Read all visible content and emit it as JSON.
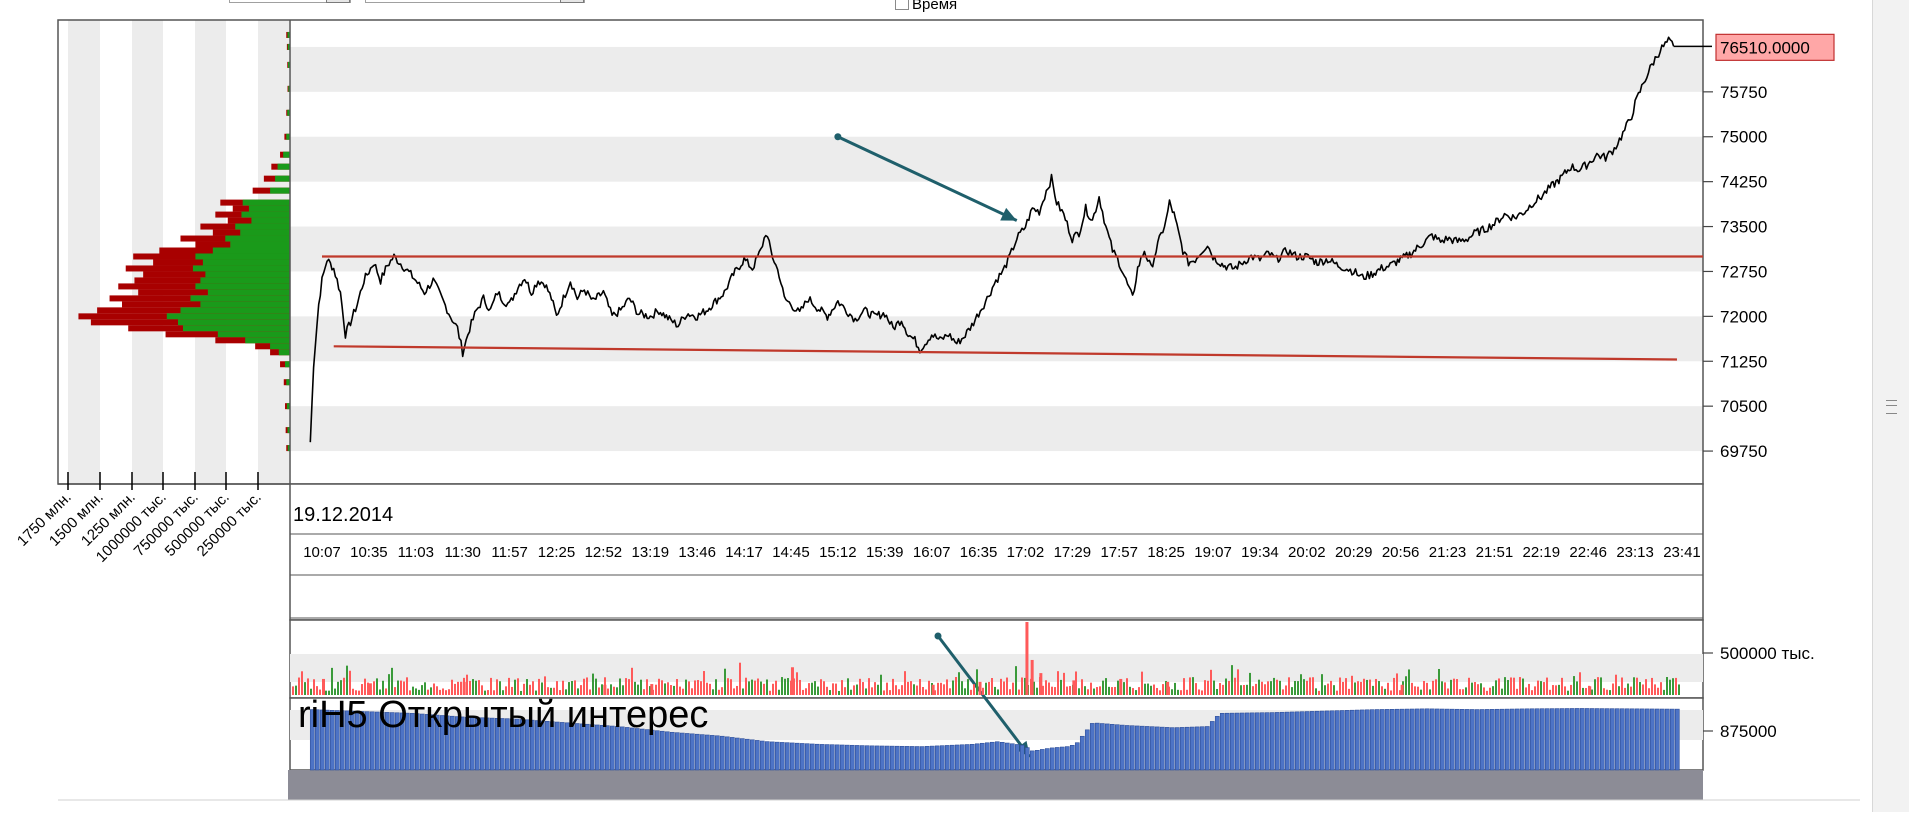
{
  "header": {
    "time_checkbox_label": "Время"
  },
  "chart_data": [
    {
      "type": "line",
      "title": "",
      "xlabel": "",
      "ylabel": "",
      "date": "19.12.2014",
      "x_ticks": [
        "10:07",
        "10:35",
        "11:03",
        "11:30",
        "11:57",
        "12:25",
        "12:52",
        "13:19",
        "13:46",
        "14:17",
        "14:45",
        "15:12",
        "15:39",
        "16:07",
        "16:35",
        "17:02",
        "17:29",
        "17:57",
        "18:25",
        "19:07",
        "19:34",
        "20:02",
        "20:29",
        "20:56",
        "21:23",
        "21:51",
        "22:19",
        "22:46",
        "23:13",
        "23:41"
      ],
      "y_ticks": [
        "75750",
        "75000",
        "74250",
        "73500",
        "72750",
        "72000",
        "71250",
        "70500",
        "69750"
      ],
      "ylim": [
        69200,
        76950
      ],
      "grid": "alternating horizontal bands",
      "last_price": "76510.0000",
      "price_path": [
        [
          "10:00",
          69900
        ],
        [
          "10:02",
          71200
        ],
        [
          "10:05",
          72200
        ],
        [
          "10:07",
          72600
        ],
        [
          "10:10",
          72950
        ],
        [
          "10:14",
          72800
        ],
        [
          "10:18",
          72400
        ],
        [
          "10:21",
          71700
        ],
        [
          "10:24",
          71900
        ],
        [
          "10:28",
          72200
        ],
        [
          "10:32",
          72600
        ],
        [
          "10:35",
          72750
        ],
        [
          "10:38",
          72900
        ],
        [
          "10:42",
          72600
        ],
        [
          "10:46",
          72850
        ],
        [
          "10:50",
          73000
        ],
        [
          "10:55",
          72850
        ],
        [
          "11:00",
          72700
        ],
        [
          "11:03",
          72600
        ],
        [
          "11:08",
          72400
        ],
        [
          "11:13",
          72600
        ],
        [
          "11:18",
          72300
        ],
        [
          "11:23",
          72000
        ],
        [
          "11:27",
          71800
        ],
        [
          "11:30",
          71400
        ],
        [
          "11:34",
          71800
        ],
        [
          "11:38",
          72100
        ],
        [
          "11:42",
          72300
        ],
        [
          "11:46",
          72100
        ],
        [
          "11:50",
          72400
        ],
        [
          "11:54",
          72250
        ],
        [
          "11:57",
          72200
        ],
        [
          "12:02",
          72500
        ],
        [
          "12:06",
          72650
        ],
        [
          "12:10",
          72400
        ],
        [
          "12:14",
          72600
        ],
        [
          "12:18",
          72550
        ],
        [
          "12:22",
          72300
        ],
        [
          "12:25",
          72000
        ],
        [
          "12:29",
          72300
        ],
        [
          "12:33",
          72600
        ],
        [
          "12:37",
          72300
        ],
        [
          "12:41",
          72450
        ],
        [
          "12:46",
          72250
        ],
        [
          "12:52",
          72400
        ],
        [
          "12:57",
          72000
        ],
        [
          "13:02",
          72100
        ],
        [
          "13:07",
          72300
        ],
        [
          "13:12",
          72050
        ],
        [
          "13:19",
          72000
        ],
        [
          "13:24",
          72100
        ],
        [
          "13:30",
          71950
        ],
        [
          "13:35",
          71850
        ],
        [
          "13:40",
          72050
        ],
        [
          "13:46",
          72000
        ],
        [
          "13:52",
          72100
        ],
        [
          "13:58",
          72250
        ],
        [
          "14:04",
          72400
        ],
        [
          "14:10",
          72700
        ],
        [
          "14:17",
          72950
        ],
        [
          "14:22",
          72800
        ],
        [
          "14:27",
          73100
        ],
        [
          "14:30",
          73400
        ],
        [
          "14:34",
          73000
        ],
        [
          "14:38",
          72700
        ],
        [
          "14:41",
          72300
        ],
        [
          "14:45",
          72200
        ],
        [
          "14:50",
          72050
        ],
        [
          "14:55",
          72300
        ],
        [
          "15:00",
          72150
        ],
        [
          "15:06",
          72000
        ],
        [
          "15:12",
          72250
        ],
        [
          "15:17",
          72100
        ],
        [
          "15:22",
          71950
        ],
        [
          "15:27",
          72100
        ],
        [
          "15:33",
          72000
        ],
        [
          "15:39",
          72050
        ],
        [
          "15:44",
          71800
        ],
        [
          "15:49",
          71950
        ],
        [
          "15:53",
          71700
        ],
        [
          "15:57",
          71600
        ],
        [
          "16:00",
          71450
        ],
        [
          "16:03",
          71550
        ],
        [
          "16:07",
          71700
        ],
        [
          "16:12",
          71600
        ],
        [
          "16:17",
          71700
        ],
        [
          "16:22",
          71550
        ],
        [
          "16:26",
          71650
        ],
        [
          "16:31",
          71850
        ],
        [
          "16:35",
          72050
        ],
        [
          "16:40",
          72300
        ],
        [
          "16:45",
          72600
        ],
        [
          "16:49",
          72750
        ],
        [
          "16:53",
          73000
        ],
        [
          "16:57",
          73300
        ],
        [
          "17:02",
          73500
        ],
        [
          "17:06",
          73800
        ],
        [
          "17:10",
          73750
        ],
        [
          "17:14",
          74100
        ],
        [
          "17:17",
          74300
        ],
        [
          "17:20",
          73900
        ],
        [
          "17:24",
          73700
        ],
        [
          "17:29",
          73300
        ],
        [
          "17:33",
          73400
        ],
        [
          "17:37",
          73800
        ],
        [
          "17:41",
          73600
        ],
        [
          "17:45",
          74000
        ],
        [
          "17:49",
          73500
        ],
        [
          "17:53",
          73100
        ],
        [
          "17:57",
          72900
        ],
        [
          "18:01",
          72600
        ],
        [
          "18:05",
          72300
        ],
        [
          "18:08",
          72800
        ],
        [
          "18:12",
          73100
        ],
        [
          "18:16",
          72800
        ],
        [
          "18:20",
          73200
        ],
        [
          "18:25",
          73600
        ],
        [
          "18:28",
          73900
        ],
        [
          "18:32",
          73700
        ],
        [
          "18:36",
          73400
        ],
        [
          "18:40",
          73100
        ],
        [
          "18:45",
          72900
        ],
        [
          "18:51",
          72950
        ],
        [
          "18:57",
          73100
        ],
        [
          "19:02",
          73200
        ],
        [
          "19:07",
          73000
        ],
        [
          "19:13",
          72850
        ],
        [
          "19:19",
          72800
        ],
        [
          "19:24",
          72900
        ],
        [
          "19:29",
          73000
        ],
        [
          "19:34",
          72950
        ],
        [
          "19:39",
          73050
        ],
        [
          "19:44",
          72950
        ],
        [
          "19:50",
          73100
        ],
        [
          "19:56",
          73000
        ],
        [
          "20:02",
          73000
        ],
        [
          "20:08",
          72900
        ],
        [
          "20:14",
          72950
        ],
        [
          "20:20",
          72850
        ],
        [
          "20:25",
          72800
        ],
        [
          "20:29",
          72750
        ],
        [
          "20:34",
          72650
        ],
        [
          "20:39",
          72700
        ],
        [
          "20:45",
          72800
        ],
        [
          "20:50",
          72850
        ],
        [
          "20:56",
          72950
        ],
        [
          "21:02",
          73050
        ],
        [
          "21:08",
          73200
        ],
        [
          "21:14",
          73350
        ],
        [
          "21:19",
          73250
        ],
        [
          "21:23",
          73300
        ],
        [
          "21:29",
          73250
        ],
        [
          "21:35",
          73300
        ],
        [
          "21:40",
          73400
        ],
        [
          "21:45",
          73450
        ],
        [
          "21:51",
          73550
        ],
        [
          "21:57",
          73700
        ],
        [
          "22:03",
          73650
        ],
        [
          "22:09",
          73750
        ],
        [
          "22:14",
          73900
        ],
        [
          "22:19",
          74000
        ],
        [
          "22:24",
          74150
        ],
        [
          "22:30",
          74300
        ],
        [
          "22:36",
          74500
        ],
        [
          "22:41",
          74450
        ],
        [
          "22:46",
          74550
        ],
        [
          "22:51",
          74700
        ],
        [
          "22:56",
          74650
        ],
        [
          "23:01",
          74800
        ],
        [
          "23:06",
          75050
        ],
        [
          "23:11",
          75350
        ],
        [
          "23:13",
          75550
        ],
        [
          "23:18",
          75900
        ],
        [
          "23:23",
          76200
        ],
        [
          "23:28",
          76450
        ],
        [
          "23:33",
          76600
        ],
        [
          "23:36",
          76510
        ]
      ],
      "levels": [
        {
          "from": [
            "10:07",
            73000
          ],
          "to": [
            "23:59",
            73000
          ],
          "color": "#c0392b"
        },
        {
          "from": [
            "10:14",
            71500
          ],
          "to": [
            "23:38",
            71280
          ],
          "color": "#c0392b"
        }
      ],
      "annotation_arrow": {
        "from": [
          "15:12",
          75000
        ],
        "to": [
          "16:57",
          73600
        ],
        "color": "#1f5f6b"
      }
    },
    {
      "type": "bar",
      "title": "",
      "orientation": "horizontal",
      "description_of_ticks": "volume profile",
      "x_ticks": [
        "1750 млн.",
        "1500 млн.",
        "1250 млн.",
        "1000000 тыс.",
        "750000 тыс.",
        "500000 тыс.",
        "250000 тыс."
      ],
      "xlim": [
        0,
        1800
      ],
      "colors": {
        "total": "#a80000",
        "part": "#1a9a1a"
      },
      "profile": [
        [
          76700,
          30,
          20
        ],
        [
          76500,
          25,
          18
        ],
        [
          76200,
          22,
          16
        ],
        [
          75800,
          20,
          14
        ],
        [
          75400,
          30,
          22
        ],
        [
          75000,
          45,
          30
        ],
        [
          74700,
          80,
          55
        ],
        [
          74500,
          150,
          100
        ],
        [
          74300,
          210,
          120
        ],
        [
          74100,
          300,
          160
        ],
        [
          73900,
          560,
          380
        ],
        [
          73800,
          460,
          330
        ],
        [
          73700,
          600,
          390
        ],
        [
          73600,
          500,
          310
        ],
        [
          73500,
          720,
          440
        ],
        [
          73400,
          620,
          400
        ],
        [
          73300,
          880,
          520
        ],
        [
          73200,
          760,
          480
        ],
        [
          73100,
          1050,
          620
        ],
        [
          73000,
          1260,
          760
        ],
        [
          72900,
          1100,
          700
        ],
        [
          72800,
          1320,
          780
        ],
        [
          72700,
          1180,
          680
        ],
        [
          72600,
          1250,
          720
        ],
        [
          72500,
          1380,
          760
        ],
        [
          72400,
          1220,
          660
        ],
        [
          72300,
          1450,
          800
        ],
        [
          72200,
          1350,
          720
        ],
        [
          72100,
          1550,
          880
        ],
        [
          72000,
          1700,
          990
        ],
        [
          71900,
          1600,
          900
        ],
        [
          71800,
          1300,
          860
        ],
        [
          71700,
          1000,
          580
        ],
        [
          71600,
          600,
          360
        ],
        [
          71500,
          280,
          160
        ],
        [
          71400,
          160,
          90
        ],
        [
          71200,
          80,
          40
        ],
        [
          70900,
          50,
          30
        ],
        [
          70500,
          40,
          25
        ],
        [
          70100,
          35,
          20
        ],
        [
          69800,
          30,
          18
        ]
      ]
    },
    {
      "type": "bar",
      "title": "",
      "y_ticks": [
        "500000 тыс."
      ],
      "colors": [
        "#ff5a5a",
        "#3a9a3a"
      ],
      "spikes": [
        [
          "10:07",
          220000
        ],
        [
          "10:35",
          160000
        ],
        [
          "11:30",
          180000
        ],
        [
          "12:52",
          140000
        ],
        [
          "13:19",
          150000
        ],
        [
          "14:45",
          380000
        ],
        [
          "16:07",
          140000
        ],
        [
          "16:35",
          180000
        ],
        [
          "17:02",
          1000000
        ],
        [
          "17:05",
          480000
        ],
        [
          "17:10",
          300000
        ],
        [
          "17:29",
          200000
        ],
        [
          "17:57",
          220000
        ],
        [
          "18:25",
          180000
        ],
        [
          "20:56",
          140000
        ],
        [
          "22:46",
          120000
        ]
      ]
    },
    {
      "type": "bar",
      "title": "riH5 Открытый интерес",
      "y_ticks": [
        "875000"
      ],
      "colors": {
        "bar": "#4d73c6",
        "edge": "#2f4f99"
      },
      "levels": [
        [
          "10:00",
          940000
        ],
        [
          "10:30",
          935000
        ],
        [
          "11:00",
          930000
        ],
        [
          "11:30",
          920000
        ],
        [
          "12:00",
          915000
        ],
        [
          "12:30",
          905000
        ],
        [
          "13:00",
          895000
        ],
        [
          "13:30",
          880000
        ],
        [
          "14:00",
          870000
        ],
        [
          "14:30",
          855000
        ],
        [
          "15:00",
          848000
        ],
        [
          "15:30",
          844000
        ],
        [
          "16:00",
          842000
        ],
        [
          "16:30",
          848000
        ],
        [
          "16:45",
          855000
        ],
        [
          "17:00",
          845000
        ],
        [
          "17:05",
          830000
        ],
        [
          "17:15",
          838000
        ],
        [
          "17:25",
          842000
        ],
        [
          "17:30",
          848000
        ],
        [
          "17:40",
          905000
        ],
        [
          "18:00",
          898000
        ],
        [
          "18:30",
          892000
        ],
        [
          "19:00",
          895000
        ],
        [
          "19:10",
          930000
        ],
        [
          "19:40",
          932000
        ],
        [
          "20:10",
          936000
        ],
        [
          "20:40",
          940000
        ],
        [
          "21:10",
          942000
        ],
        [
          "21:40",
          940000
        ],
        [
          "22:10",
          942000
        ],
        [
          "22:40",
          943000
        ],
        [
          "23:10",
          942000
        ],
        [
          "23:41",
          941000
        ]
      ]
    }
  ]
}
